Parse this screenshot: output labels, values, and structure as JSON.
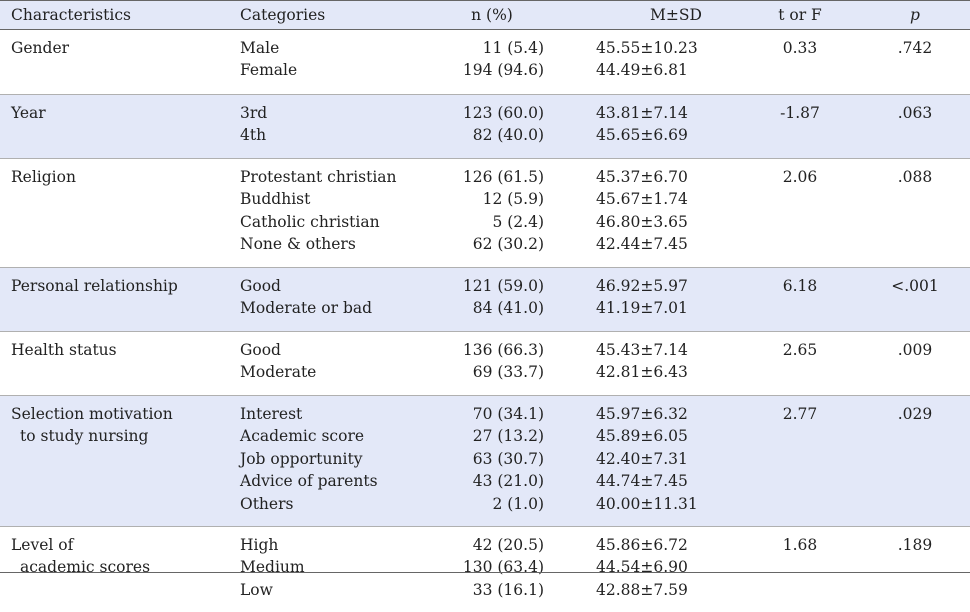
{
  "header": {
    "characteristics": "Characteristics",
    "categories": "Categories",
    "n_pct": "n (%)",
    "msd": "M±SD",
    "t_or_f": "t or F",
    "p": "p"
  },
  "groups": [
    {
      "characteristic": [
        "Gender"
      ],
      "categories": [
        "Male",
        "Female"
      ],
      "n": [
        "11 (5.4)",
        "194 (94.6)"
      ],
      "msd": [
        "45.55±10.23",
        "44.49±6.81"
      ],
      "t": "0.33",
      "p": ".742"
    },
    {
      "characteristic": [
        "Year"
      ],
      "categories": [
        "3rd",
        "4th"
      ],
      "n": [
        "123 (60.0)",
        "82 (40.0)"
      ],
      "msd": [
        "43.81±7.14",
        "45.65±6.69"
      ],
      "t": "-1.87",
      "p": ".063"
    },
    {
      "characteristic": [
        "Religion"
      ],
      "categories": [
        "Protestant christian",
        "Buddhist",
        "Catholic christian",
        "None & others"
      ],
      "n": [
        "126 (61.5)",
        "12 (5.9)",
        "5 (2.4)",
        "62 (30.2)"
      ],
      "msd": [
        "45.37±6.70",
        "45.67±1.74",
        "46.80±3.65",
        "42.44±7.45"
      ],
      "t": "2.06",
      "p": ".088"
    },
    {
      "characteristic": [
        "Personal relationship"
      ],
      "categories": [
        "Good",
        "Moderate or bad"
      ],
      "n": [
        "121 (59.0)",
        "84 (41.0)"
      ],
      "msd": [
        "46.92±5.97",
        "41.19±7.01"
      ],
      "t": "6.18",
      "p": "<.001"
    },
    {
      "characteristic": [
        "Health status"
      ],
      "categories": [
        "Good",
        "Moderate"
      ],
      "n": [
        "136 (66.3)",
        "69 (33.7)"
      ],
      "msd": [
        "45.43±7.14",
        "42.81±6.43"
      ],
      "t": "2.65",
      "p": ".009"
    },
    {
      "characteristic": [
        "Selection motivation",
        "to study nursing"
      ],
      "categories": [
        "Interest",
        "Academic score",
        "Job opportunity",
        "Advice of parents",
        "Others"
      ],
      "n": [
        "70 (34.1)",
        "27 (13.2)",
        "63 (30.7)",
        "43 (21.0)",
        "2 (1.0)"
      ],
      "msd": [
        "45.97±6.32",
        "45.89±6.05",
        "42.40±7.31",
        "44.74±7.45",
        "40.00±11.31"
      ],
      "t": "2.77",
      "p": ".029"
    },
    {
      "characteristic": [
        "Level of",
        "academic scores"
      ],
      "categories": [
        "High",
        "Medium",
        "Low"
      ],
      "n": [
        "42 (20.5)",
        "130 (63.4)",
        "33 (16.1)"
      ],
      "msd": [
        "45.86±6.72",
        "44.54±6.90",
        "42.88±7.59"
      ],
      "t": "1.68",
      "p": ".189"
    }
  ]
}
